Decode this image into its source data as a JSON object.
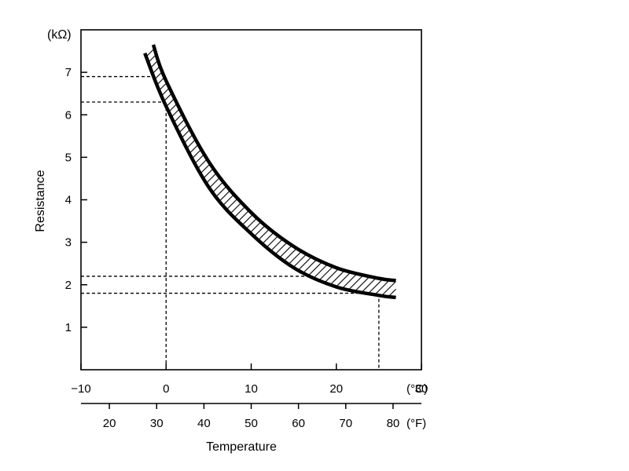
{
  "chart_data": {
    "type": "area",
    "title": "",
    "ylabel": "Resistance",
    "yunit": "(kΩ)",
    "xlabel": "Temperature",
    "ylim": [
      0,
      8
    ],
    "xlim_c": [
      -10,
      30
    ],
    "yticks": [
      "1",
      "2",
      "3",
      "4",
      "5",
      "6",
      "7"
    ],
    "xticks_c": [
      "−10",
      "0",
      "10",
      "20",
      "30"
    ],
    "xunit_c": "(°C)",
    "xticks_f": [
      "20",
      "30",
      "40",
      "50",
      "60",
      "70",
      "80"
    ],
    "xunit_f": "(°F)",
    "series": [
      {
        "x": [
          -2.5,
          0,
          5,
          10,
          15,
          20,
          25,
          27
        ],
        "y": [
          7.45,
          6.2,
          4.3,
          3.2,
          2.4,
          1.95,
          1.75,
          1.7
        ]
      },
      {
        "x": [
          -1.5,
          0,
          5,
          10,
          15,
          20,
          25,
          27
        ],
        "y": [
          7.65,
          6.8,
          4.9,
          3.7,
          2.9,
          2.4,
          2.15,
          2.1
        ]
      }
    ],
    "reference_lines": [
      {
        "axis": "y",
        "value": 6.9
      },
      {
        "axis": "y",
        "value": 6.3
      },
      {
        "axis": "y",
        "value": 2.2
      },
      {
        "axis": "y",
        "value": 1.8
      },
      {
        "axis": "x",
        "value": 0
      },
      {
        "axis": "x",
        "value": 25
      }
    ]
  }
}
